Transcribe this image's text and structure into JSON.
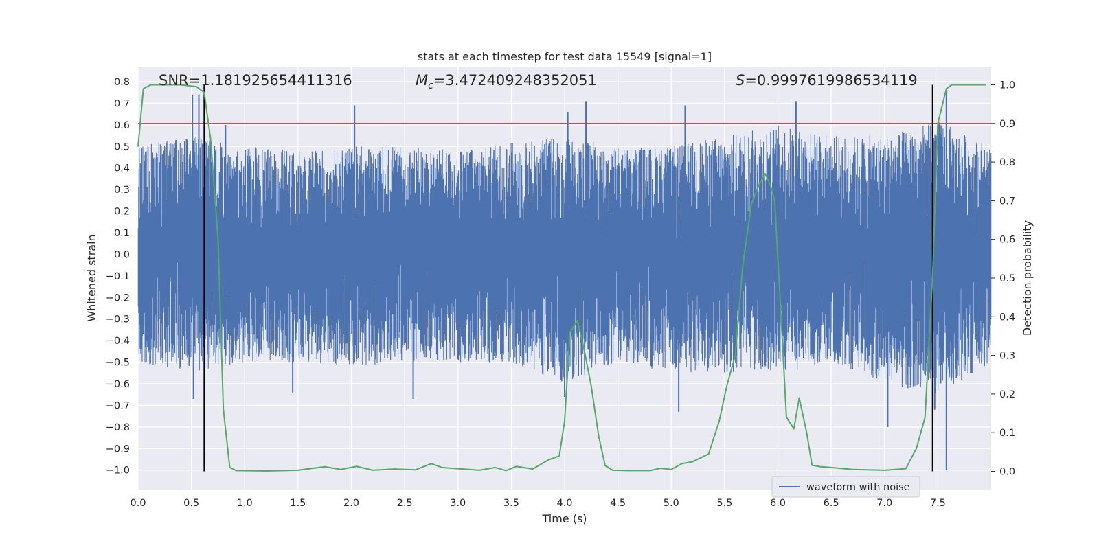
{
  "chart_data": {
    "type": "line",
    "title": "stats at each timestep for test data 15549 [signal=1]",
    "xlabel": "Time (s)",
    "ylabel": "Whitened strain",
    "y2label": "Detection probability",
    "xlim": [
      0.0,
      8.0
    ],
    "ylim": [
      -1.09,
      0.87
    ],
    "y2lim": [
      -0.047,
      1.047
    ],
    "xticks": [
      "0.0",
      "0.5",
      "1.0",
      "1.5",
      "2.0",
      "2.5",
      "3.0",
      "3.5",
      "4.0",
      "4.5",
      "5.0",
      "5.5",
      "6.0",
      "6.5",
      "7.0",
      "7.5"
    ],
    "yticks": [
      "0.8",
      "0.7",
      "0.6",
      "0.5",
      "0.4",
      "0.3",
      "0.2",
      "0.1",
      "0.0",
      "−0.1",
      "−0.2",
      "−0.3",
      "−0.4",
      "−0.5",
      "−0.6",
      "−0.7",
      "−0.8",
      "−0.9",
      "−1.0"
    ],
    "y2ticks": [
      "1.0",
      "0.9",
      "0.8",
      "0.7",
      "0.6",
      "0.5",
      "0.4",
      "0.3",
      "0.2",
      "0.1",
      "0.0"
    ],
    "grid": true,
    "legend_position": "bottom-right",
    "colors": {
      "waveform": "#4c72b0",
      "probability": "#55a868",
      "threshold": "#c44e52",
      "markers": "#000000",
      "background": "#eaeaf2",
      "grid": "#ffffff"
    },
    "annotations": {
      "snr": "SNR=1.181925654411316",
      "mc_symbol": "M",
      "mc_subscript": "c",
      "mc_value": "=3.472409248352051",
      "s_symbol": "S",
      "s_value": "=0.9997619986534119"
    },
    "threshold_probability": 0.9,
    "detection_markers_x": [
      0.62,
      7.45
    ],
    "series": [
      {
        "name": "waveform with noise",
        "axis": "left",
        "envelope_x": [
          0.0,
          0.5,
          1.0,
          1.5,
          2.0,
          2.5,
          3.0,
          3.5,
          4.0,
          4.5,
          5.0,
          5.5,
          6.0,
          6.5,
          7.0,
          7.5,
          8.0
        ],
        "upper": [
          0.5,
          0.55,
          0.5,
          0.48,
          0.5,
          0.5,
          0.48,
          0.52,
          0.55,
          0.5,
          0.5,
          0.55,
          0.6,
          0.55,
          0.55,
          0.62,
          0.5
        ],
        "lower": [
          -0.5,
          -0.55,
          -0.5,
          -0.5,
          -0.52,
          -0.5,
          -0.5,
          -0.5,
          -0.6,
          -0.5,
          -0.55,
          -0.55,
          -0.55,
          -0.5,
          -0.6,
          -0.65,
          -0.5
        ],
        "spikes": [
          {
            "x": 0.51,
            "y": 0.74
          },
          {
            "x": 0.57,
            "y": 0.74
          },
          {
            "x": 0.82,
            "y": 0.6
          },
          {
            "x": 2.03,
            "y": 0.69
          },
          {
            "x": 4.03,
            "y": 0.66
          },
          {
            "x": 4.2,
            "y": 0.71
          },
          {
            "x": 5.13,
            "y": 0.69
          },
          {
            "x": 6.17,
            "y": 0.71
          },
          {
            "x": 7.58,
            "y": 0.76
          },
          {
            "x": 0.52,
            "y": -0.67
          },
          {
            "x": 1.45,
            "y": -0.64
          },
          {
            "x": 2.58,
            "y": -0.67
          },
          {
            "x": 4.0,
            "y": -0.66
          },
          {
            "x": 5.07,
            "y": -0.73
          },
          {
            "x": 7.03,
            "y": -0.8
          },
          {
            "x": 7.58,
            "y": -1.0
          },
          {
            "x": 7.47,
            "y": -0.72
          }
        ]
      },
      {
        "name": "",
        "axis": "right",
        "x": [
          0.0,
          0.05,
          0.12,
          0.25,
          0.4,
          0.55,
          0.62,
          0.68,
          0.75,
          0.8,
          0.86,
          0.92,
          1.2,
          1.5,
          1.75,
          1.9,
          2.05,
          2.2,
          2.4,
          2.6,
          2.75,
          2.85,
          3.0,
          3.2,
          3.35,
          3.45,
          3.55,
          3.7,
          3.85,
          3.95,
          4.0,
          4.05,
          4.12,
          4.18,
          4.25,
          4.32,
          4.38,
          4.45,
          4.6,
          4.8,
          4.9,
          5.0,
          5.1,
          5.2,
          5.35,
          5.45,
          5.52,
          5.6,
          5.67,
          5.75,
          5.82,
          5.88,
          5.93,
          5.97,
          6.03,
          6.08,
          6.15,
          6.2,
          6.27,
          6.32,
          6.4,
          6.5,
          6.7,
          7.0,
          7.2,
          7.3,
          7.38,
          7.45,
          7.5,
          7.58,
          7.63,
          7.75,
          7.95
        ],
        "y": [
          0.84,
          0.99,
          1.0,
          1.0,
          1.0,
          0.995,
          0.98,
          0.86,
          0.6,
          0.16,
          0.01,
          0.002,
          0.001,
          0.003,
          0.012,
          0.005,
          0.013,
          0.003,
          0.006,
          0.004,
          0.02,
          0.01,
          0.007,
          0.003,
          0.01,
          0.002,
          0.013,
          0.006,
          0.03,
          0.04,
          0.13,
          0.36,
          0.39,
          0.32,
          0.22,
          0.09,
          0.015,
          0.003,
          0.002,
          0.002,
          0.008,
          0.005,
          0.02,
          0.025,
          0.045,
          0.13,
          0.22,
          0.3,
          0.53,
          0.69,
          0.74,
          0.77,
          0.74,
          0.7,
          0.4,
          0.14,
          0.11,
          0.19,
          0.1,
          0.016,
          0.012,
          0.01,
          0.005,
          0.003,
          0.007,
          0.06,
          0.14,
          0.5,
          0.9,
          0.99,
          1.0,
          1.0,
          1.0
        ]
      }
    ]
  }
}
